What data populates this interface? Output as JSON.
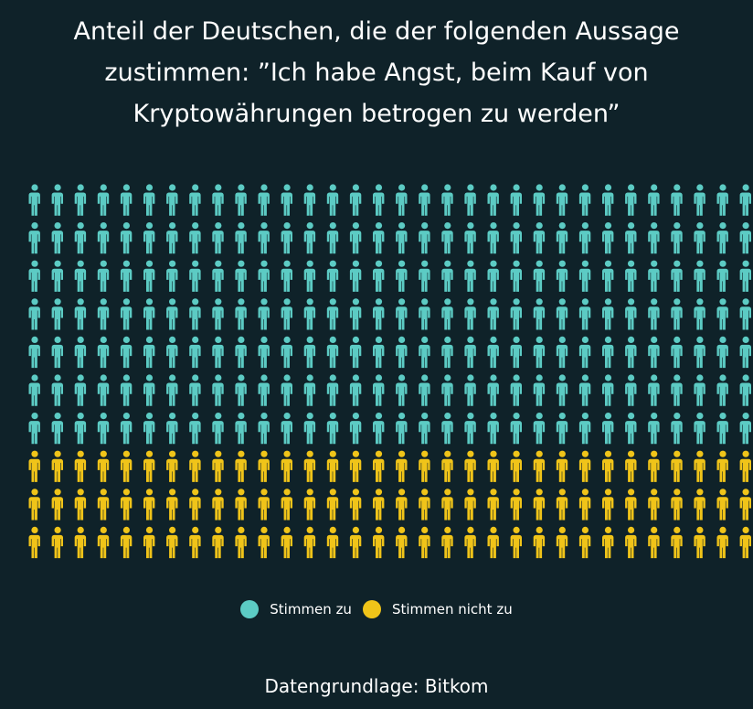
{
  "chart_data": {
    "type": "pictogram",
    "title_lines": [
      "Anteil der Deutschen, die der folgenden Aussage",
      "zustimmen: ”Ich habe Angst, beim Kauf von",
      "Kryptowährungen betrogen zu werden”"
    ],
    "rows": 10,
    "columns": 32,
    "series": [
      {
        "name": "Stimmen zu",
        "rows": 7,
        "color": "#5ccbc4"
      },
      {
        "name": "Stimmen nicht zu",
        "rows": 3,
        "color": "#f0c419"
      }
    ],
    "legend_position": "bottom"
  },
  "source": "Datengrundlage: Bitkom"
}
